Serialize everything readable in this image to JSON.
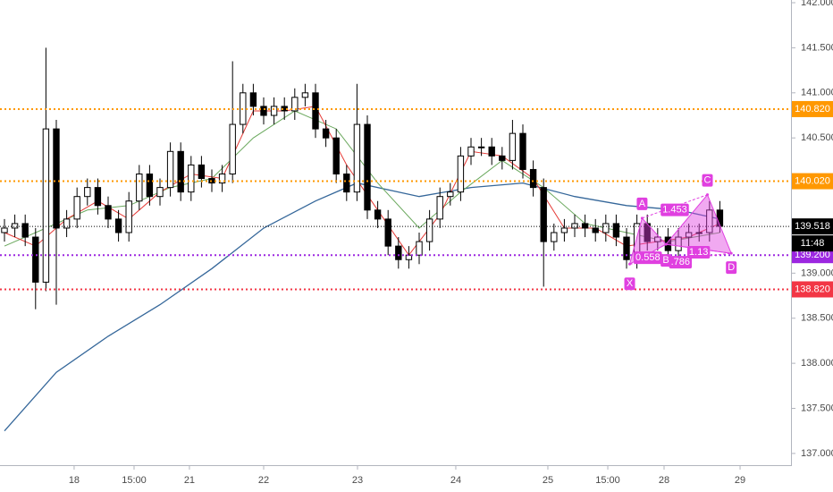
{
  "chart_data": {
    "type": "candlestick",
    "xlim": [
      -0.43,
      75.86
    ],
    "ylim": [
      136.87,
      142.03
    ],
    "xticks": [
      {
        "value": 6.72,
        "label": "18"
      },
      {
        "value": 12.5,
        "label": "15:00"
      },
      {
        "value": 17.84,
        "label": "21"
      },
      {
        "value": 25,
        "label": "22"
      },
      {
        "value": 34.05,
        "label": "23"
      },
      {
        "value": 43.53,
        "label": "24"
      },
      {
        "value": 52.41,
        "label": "25"
      },
      {
        "value": 58.19,
        "label": "15:00"
      },
      {
        "value": 63.62,
        "label": "28"
      },
      {
        "value": 70.95,
        "label": "29"
      }
    ],
    "yticks": [
      {
        "value": 137,
        "label": "137.000"
      },
      {
        "value": 137.5,
        "label": "137.500"
      },
      {
        "value": 138,
        "label": "138.000"
      },
      {
        "value": 138.5,
        "label": "138.500"
      },
      {
        "value": 139,
        "label": "139.000"
      },
      {
        "value": 139.5,
        "label": "139.500"
      },
      {
        "value": 140,
        "label": "140.000"
      },
      {
        "value": 140.5,
        "label": "140.500"
      },
      {
        "value": 141,
        "label": "141.000"
      },
      {
        "value": 141.5,
        "label": "141.500"
      },
      {
        "value": 142,
        "label": "142.000"
      }
    ],
    "grid": true,
    "up_color": "#ffffff",
    "down_color": "#000000",
    "open": [
      139.45,
      139.5,
      139.55,
      139.4,
      138.9,
      140.6,
      139.5,
      139.6,
      139.85,
      139.95,
      139.75,
      139.6,
      139.45,
      139.8,
      140.1,
      139.85,
      139.95,
      140.35,
      139.9,
      140.2,
      140.05,
      140.0,
      140.1,
      140.65,
      141.0,
      140.85,
      140.75,
      140.85,
      140.8,
      140.95,
      141.0,
      140.6,
      140.5,
      140.1,
      139.9,
      140.65,
      139.7,
      139.6,
      139.3,
      139.15,
      139.2,
      139.35,
      139.6,
      139.85,
      139.9,
      140.3,
      140.4,
      140.4,
      140.3,
      140.25,
      140.55,
      140.15,
      139.95,
      139.35,
      139.45,
      139.5,
      139.55,
      139.5,
      139.45,
      139.55,
      139.4,
      139.15,
      139.55,
      139.35,
      139.4,
      139.25,
      139.4,
      139.45,
      139.45,
      139.7
    ],
    "high": [
      139.6,
      139.65,
      139.65,
      139.5,
      141.5,
      140.7,
      139.7,
      139.95,
      140.05,
      140.05,
      139.85,
      139.7,
      139.9,
      140.2,
      140.2,
      140.05,
      140.45,
      140.45,
      140.3,
      140.3,
      140.15,
      140.2,
      141.35,
      141.1,
      141.1,
      140.95,
      140.95,
      140.95,
      141.05,
      141.1,
      141.1,
      140.7,
      140.6,
      140.2,
      141.1,
      140.75,
      139.8,
      139.7,
      139.4,
      139.3,
      139.45,
      139.7,
      139.95,
      140.0,
      140.4,
      140.5,
      140.5,
      140.5,
      140.4,
      140.7,
      140.65,
      140.25,
      140.05,
      139.55,
      139.6,
      139.65,
      139.65,
      139.6,
      139.65,
      139.65,
      139.5,
      139.65,
      139.65,
      139.5,
      139.5,
      139.5,
      139.55,
      139.55,
      139.8,
      139.8
    ],
    "low": [
      139.35,
      139.4,
      139.3,
      138.6,
      138.8,
      138.65,
      139.4,
      139.5,
      139.75,
      139.65,
      139.5,
      139.35,
      139.35,
      139.7,
      139.75,
      139.75,
      139.85,
      139.8,
      139.8,
      139.95,
      139.9,
      139.9,
      140.0,
      140.55,
      140.75,
      140.65,
      140.65,
      140.7,
      140.7,
      140.85,
      140.5,
      140.4,
      140.0,
      139.8,
      139.8,
      139.6,
      139.5,
      139.2,
      139.05,
      139.05,
      139.1,
      139.25,
      139.5,
      139.75,
      139.8,
      140.2,
      140.3,
      140.2,
      140.15,
      140.15,
      140.05,
      139.85,
      138.85,
      139.25,
      139.35,
      139.4,
      139.4,
      139.35,
      139.35,
      139.3,
      139.05,
      139.05,
      139.25,
      139.25,
      139.15,
      139.15,
      139.3,
      139.35,
      139.35,
      139.45
    ],
    "close": [
      139.5,
      139.55,
      139.4,
      138.9,
      140.6,
      139.5,
      139.6,
      139.85,
      139.95,
      139.75,
      139.6,
      139.45,
      139.8,
      140.1,
      139.85,
      139.95,
      140.35,
      139.9,
      140.2,
      140.05,
      140.0,
      140.1,
      140.65,
      141.0,
      140.85,
      140.75,
      140.85,
      140.8,
      140.95,
      141.0,
      140.6,
      140.5,
      140.1,
      139.9,
      140.65,
      139.7,
      139.6,
      139.3,
      139.15,
      139.2,
      139.35,
      139.6,
      139.85,
      139.9,
      140.3,
      140.4,
      140.4,
      140.3,
      140.25,
      140.55,
      140.15,
      139.95,
      139.35,
      139.45,
      139.5,
      139.55,
      139.5,
      139.45,
      139.55,
      139.4,
      139.15,
      139.55,
      139.35,
      139.4,
      139.25,
      139.4,
      139.45,
      139.45,
      139.7,
      139.52
    ],
    "series": [
      {
        "color": "#35679a",
        "x": [
          0,
          5,
          10,
          15,
          20,
          25,
          30,
          34,
          40,
          45,
          50,
          55,
          60,
          65,
          69
        ],
        "values": [
          137.25,
          137.9,
          138.3,
          138.65,
          139.05,
          139.5,
          139.8,
          140.0,
          139.85,
          139.95,
          140.0,
          139.85,
          139.75,
          139.7,
          139.6
        ]
      },
      {
        "color": "#6aa85d",
        "x": [
          0,
          4,
          8,
          12,
          16,
          20,
          24,
          28,
          32,
          36,
          40,
          44,
          48,
          52,
          56,
          60,
          64,
          69
        ],
        "values": [
          139.3,
          139.5,
          139.7,
          139.75,
          139.95,
          140.05,
          140.5,
          140.8,
          140.6,
          140.0,
          139.5,
          139.9,
          140.25,
          139.95,
          139.55,
          139.45,
          139.35,
          139.45
        ]
      },
      {
        "color": "#e53935",
        "x": [
          0,
          3,
          6,
          9,
          12,
          15,
          18,
          21,
          24,
          27,
          30,
          33,
          36,
          39,
          42,
          45,
          48,
          51,
          54,
          57,
          60,
          63,
          66,
          69
        ],
        "values": [
          139.45,
          139.3,
          139.6,
          139.8,
          139.6,
          139.9,
          140.1,
          140.05,
          140.8,
          140.8,
          140.85,
          140.2,
          139.7,
          139.2,
          139.65,
          140.35,
          140.3,
          140.05,
          139.5,
          139.5,
          139.3,
          139.35,
          139.4,
          139.55
        ]
      }
    ],
    "levels": [
      {
        "value": 140.82,
        "label": "140.820",
        "color": "#ff9800"
      },
      {
        "value": 140.02,
        "label": "140.020",
        "color": "#ff9800"
      },
      {
        "value": 139.2,
        "label": "139.200",
        "color": "#9c27e0"
      },
      {
        "value": 138.82,
        "label": "138.820",
        "color": "#f23645"
      }
    ],
    "last_price": {
      "value": 139.518,
      "time": "11:48",
      "color": "#000000"
    },
    "pattern": {
      "color": "#e040e0",
      "points": [
        {
          "label": "X",
          "x": 60.3,
          "y": 139.1
        },
        {
          "label": "A",
          "x": 61.5,
          "y": 139.61
        },
        {
          "label": "B",
          "x": 63.8,
          "y": 139.32
        },
        {
          "label": "C",
          "x": 67.8,
          "y": 139.87
        },
        {
          "label": "D",
          "x": 70.1,
          "y": 139.22
        }
      ],
      "ratios": [
        0.558,
        {
          "value": 0.786,
          "label": ".786"
        },
        1.453,
        1.13
      ]
    }
  }
}
